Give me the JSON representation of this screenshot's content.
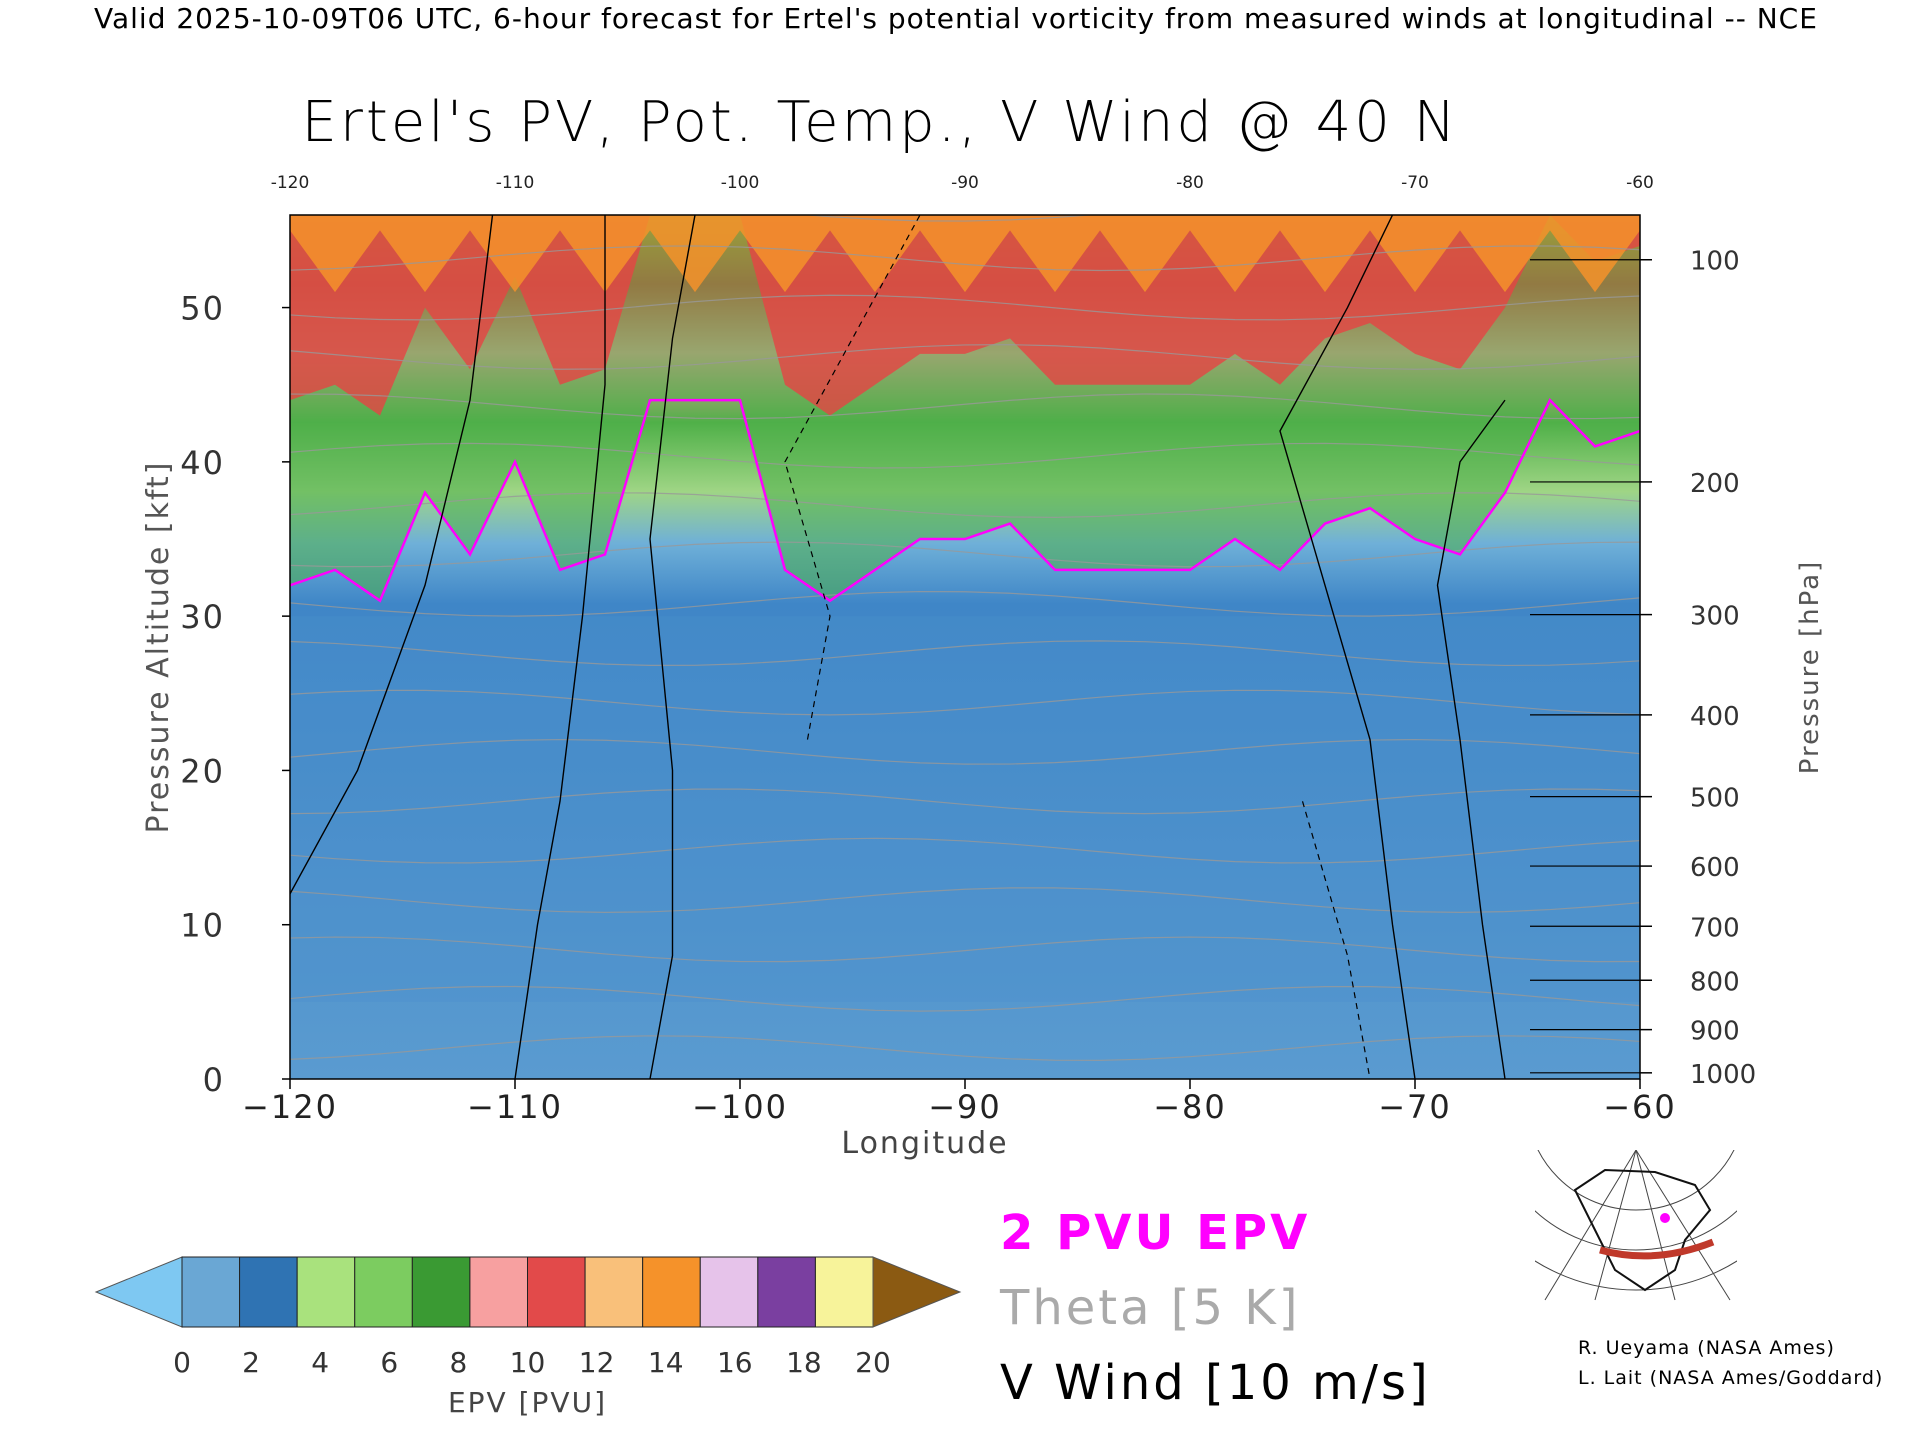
{
  "header": {
    "text": "Valid 2025-10-09T06 UTC, 6-hour forecast for Ertel's potential vorticity from measured winds at longitudinal -- NCE"
  },
  "chart_data": {
    "type": "heatmap",
    "title": "Ertel's PV, Pot. Temp., V Wind @ 40 N",
    "xlabel": "Longitude",
    "ylabel": "Pressure Altitude [kft]",
    "y2label": "Pressure [hPa]",
    "xlim": [
      -120,
      -60
    ],
    "ylim": [
      0,
      56
    ],
    "x_ticks": [
      -120,
      -110,
      -100,
      -90,
      -80,
      -70,
      -60
    ],
    "x_tick_labels": [
      "−120",
      "−110",
      "−100",
      "−90",
      "−80",
      "−70",
      "−60"
    ],
    "top_tick_labels": [
      "-120",
      "-110",
      "-100",
      "-90",
      "-80",
      "-70",
      "-60"
    ],
    "y_ticks": [
      0,
      10,
      20,
      30,
      40,
      50
    ],
    "pressure_ticks": [
      {
        "label": "100",
        "kft": 53.1
      },
      {
        "label": "200",
        "kft": 38.7
      },
      {
        "label": "300",
        "kft": 30.1
      },
      {
        "label": "400",
        "kft": 23.6
      },
      {
        "label": "500",
        "kft": 18.3
      },
      {
        "label": "600",
        "kft": 13.8
      },
      {
        "label": "700",
        "kft": 9.9
      },
      {
        "label": "800",
        "kft": 6.4
      },
      {
        "label": "900",
        "kft": 3.2
      },
      {
        "label": "1000",
        "kft": 0.4
      }
    ],
    "tropopause_2pvu_kft": [
      [
        -120,
        32
      ],
      [
        -118,
        33
      ],
      [
        -116,
        31
      ],
      [
        -114,
        38
      ],
      [
        -112,
        34
      ],
      [
        -110,
        40
      ],
      [
        -108,
        33
      ],
      [
        -106,
        34
      ],
      [
        -104,
        44
      ],
      [
        -102,
        44
      ],
      [
        -100,
        44
      ],
      [
        -98,
        33
      ],
      [
        -96,
        31
      ],
      [
        -94,
        33
      ],
      [
        -92,
        35
      ],
      [
        -90,
        35
      ],
      [
        -88,
        36
      ],
      [
        -86,
        33
      ],
      [
        -84,
        33
      ],
      [
        -82,
        33
      ],
      [
        -80,
        33
      ],
      [
        -78,
        35
      ],
      [
        -76,
        33
      ],
      [
        -74,
        36
      ],
      [
        -72,
        37
      ],
      [
        -70,
        35
      ],
      [
        -68,
        34
      ],
      [
        -66,
        38
      ],
      [
        -64,
        44
      ],
      [
        -62,
        41
      ],
      [
        -60,
        42
      ]
    ],
    "colorbar": {
      "label": "EPV [PVU]",
      "ticks": [
        "0",
        "2",
        "4",
        "6",
        "8",
        "10",
        "12",
        "14",
        "16",
        "18",
        "20"
      ],
      "colors": [
        "#7ec8f2",
        "#6aa7d4",
        "#2f73b3",
        "#a9e27d",
        "#7ccc60",
        "#3a9a33",
        "#f7a0a0",
        "#e24a4a",
        "#f9c07a",
        "#f5922a",
        "#e6c3ea",
        "#7a3fa0",
        "#f7f39a",
        "#c08840",
        "#8b5a12"
      ]
    }
  },
  "legend": {
    "epv": "2 PVU EPV",
    "theta": "Theta [5 K]",
    "vwind": "V Wind [10 m/s]",
    "colors": {
      "epv": "#ff00ff",
      "theta": "#aaaaaa",
      "vwind": "#000000"
    }
  },
  "credits": {
    "line1": "R. Ueyama (NASA Ames)",
    "line2": "L. Lait (NASA Ames/Goddard)"
  }
}
